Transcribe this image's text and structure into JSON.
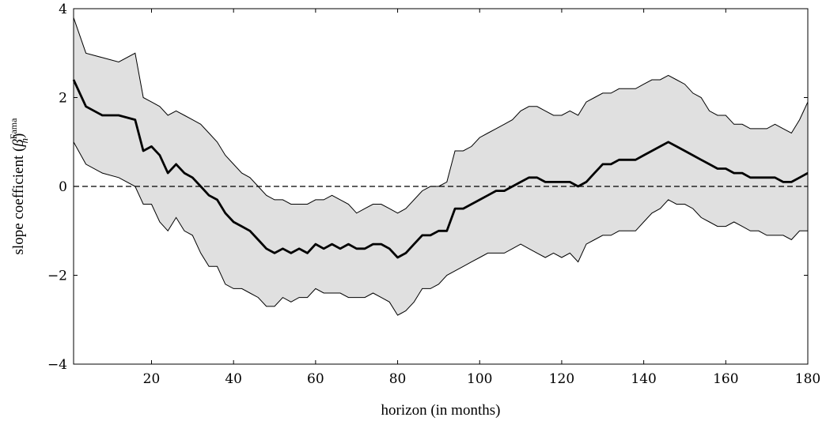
{
  "chart_data": {
    "type": "area",
    "xlabel": "horizon (in months)",
    "ylabel": {
      "main": "slope coefficient (",
      "symbol": "β",
      "subscript": "h",
      "superscript": "Fama",
      "close": ")"
    },
    "xlim": [
      1,
      180
    ],
    "ylim": [
      -4,
      4
    ],
    "xticks": [
      20,
      40,
      60,
      80,
      100,
      120,
      140,
      160,
      180
    ],
    "yticks": [
      -4,
      -2,
      0,
      2,
      4
    ],
    "ytick_labels": [
      "−4",
      "−2",
      "0",
      "2",
      "4"
    ],
    "grid": false,
    "reference_line": {
      "y": 0,
      "style": "dashed"
    },
    "band_color": "#e0e0e0",
    "line_color": "#000000",
    "x": [
      1,
      4,
      8,
      12,
      16,
      18,
      20,
      22,
      24,
      26,
      28,
      30,
      32,
      34,
      36,
      38,
      40,
      42,
      44,
      46,
      48,
      50,
      52,
      54,
      56,
      58,
      60,
      62,
      64,
      66,
      68,
      70,
      72,
      74,
      76,
      78,
      80,
      82,
      84,
      86,
      88,
      90,
      92,
      94,
      96,
      98,
      100,
      102,
      104,
      106,
      108,
      110,
      112,
      114,
      116,
      118,
      120,
      122,
      124,
      126,
      128,
      130,
      132,
      134,
      136,
      138,
      140,
      142,
      144,
      146,
      148,
      150,
      152,
      154,
      156,
      158,
      160,
      162,
      164,
      166,
      168,
      170,
      172,
      174,
      176,
      178,
      180
    ],
    "series": [
      {
        "role": "estimate",
        "values": [
          2.4,
          1.8,
          1.6,
          1.6,
          1.5,
          0.8,
          0.9,
          0.7,
          0.3,
          0.5,
          0.3,
          0.2,
          0.0,
          -0.2,
          -0.3,
          -0.6,
          -0.8,
          -0.9,
          -1.0,
          -1.2,
          -1.4,
          -1.5,
          -1.4,
          -1.5,
          -1.4,
          -1.5,
          -1.3,
          -1.4,
          -1.3,
          -1.4,
          -1.3,
          -1.4,
          -1.4,
          -1.3,
          -1.3,
          -1.4,
          -1.6,
          -1.5,
          -1.3,
          -1.1,
          -1.1,
          -1.0,
          -1.0,
          -0.5,
          -0.5,
          -0.4,
          -0.3,
          -0.2,
          -0.1,
          -0.1,
          0.0,
          0.1,
          0.2,
          0.2,
          0.1,
          0.1,
          0.1,
          0.1,
          0.0,
          0.1,
          0.3,
          0.5,
          0.5,
          0.6,
          0.6,
          0.6,
          0.7,
          0.8,
          0.9,
          1.0,
          0.9,
          0.8,
          0.7,
          0.6,
          0.5,
          0.4,
          0.4,
          0.3,
          0.3,
          0.2,
          0.2,
          0.2,
          0.2,
          0.1,
          0.1,
          0.2,
          0.3
        ]
      },
      {
        "role": "upper",
        "values": [
          3.8,
          3.0,
          2.9,
          2.8,
          3.0,
          2.0,
          1.9,
          1.8,
          1.6,
          1.7,
          1.6,
          1.5,
          1.4,
          1.2,
          1.0,
          0.7,
          0.5,
          0.3,
          0.2,
          0.0,
          -0.2,
          -0.3,
          -0.3,
          -0.4,
          -0.4,
          -0.4,
          -0.3,
          -0.3,
          -0.2,
          -0.3,
          -0.4,
          -0.6,
          -0.5,
          -0.4,
          -0.4,
          -0.5,
          -0.6,
          -0.5,
          -0.3,
          -0.1,
          0.0,
          0.0,
          0.1,
          0.8,
          0.8,
          0.9,
          1.1,
          1.2,
          1.3,
          1.4,
          1.5,
          1.7,
          1.8,
          1.8,
          1.7,
          1.6,
          1.6,
          1.7,
          1.6,
          1.9,
          2.0,
          2.1,
          2.1,
          2.2,
          2.2,
          2.2,
          2.3,
          2.4,
          2.4,
          2.5,
          2.4,
          2.3,
          2.1,
          2.0,
          1.7,
          1.6,
          1.6,
          1.4,
          1.4,
          1.3,
          1.3,
          1.3,
          1.4,
          1.3,
          1.2,
          1.5,
          1.9
        ]
      },
      {
        "role": "lower",
        "values": [
          1.0,
          0.5,
          0.3,
          0.2,
          0.0,
          -0.4,
          -0.4,
          -0.8,
          -1.0,
          -0.7,
          -1.0,
          -1.1,
          -1.5,
          -1.8,
          -1.8,
          -2.2,
          -2.3,
          -2.3,
          -2.4,
          -2.5,
          -2.7,
          -2.7,
          -2.5,
          -2.6,
          -2.5,
          -2.5,
          -2.3,
          -2.4,
          -2.4,
          -2.4,
          -2.5,
          -2.5,
          -2.5,
          -2.4,
          -2.5,
          -2.6,
          -2.9,
          -2.8,
          -2.6,
          -2.3,
          -2.3,
          -2.2,
          -2.0,
          -1.9,
          -1.8,
          -1.7,
          -1.6,
          -1.5,
          -1.5,
          -1.5,
          -1.4,
          -1.3,
          -1.4,
          -1.5,
          -1.6,
          -1.5,
          -1.6,
          -1.5,
          -1.7,
          -1.3,
          -1.2,
          -1.1,
          -1.1,
          -1.0,
          -1.0,
          -1.0,
          -0.8,
          -0.6,
          -0.5,
          -0.3,
          -0.4,
          -0.4,
          -0.5,
          -0.7,
          -0.8,
          -0.9,
          -0.9,
          -0.8,
          -0.9,
          -1.0,
          -1.0,
          -1.1,
          -1.1,
          -1.1,
          -1.2,
          -1.0,
          -1.0
        ]
      }
    ]
  }
}
